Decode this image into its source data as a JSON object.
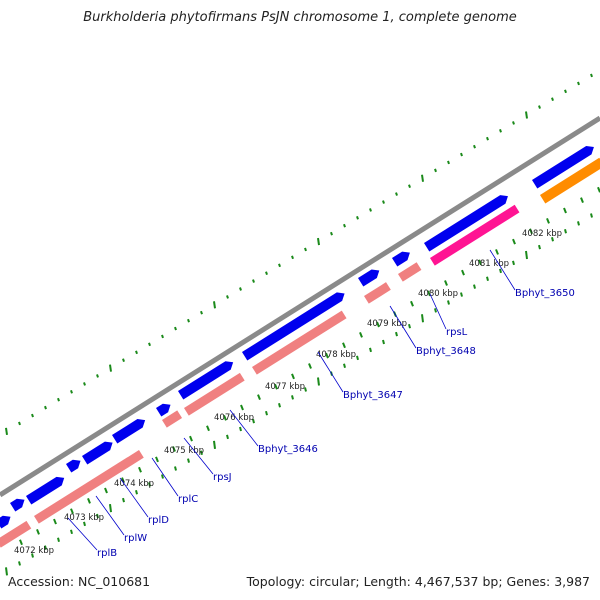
{
  "header": {
    "title": "Burkholderia phytofirmans PsJN chromosome 1, complete genome"
  },
  "footer": {
    "accession": "Accession: NC_010681",
    "summary": "Topology: circular; Length: 4,467,537 bp; Genes: 3,987"
  },
  "colors": {
    "backbone": "#8a8a8a",
    "cds_forward": "#0000ee",
    "rrna_like": "#f08080",
    "pseudo_pink": "#ff1493",
    "orange": "#ff8c00",
    "tick_green": "#1a8a1a",
    "label_line": "#0000cc"
  },
  "kbp_labels": [
    "4072 kbp",
    "4073 kbp",
    "4074 kbp",
    "4075 kbp",
    "4076 kbp",
    "4077 kbp",
    "4078 kbp",
    "4079 kbp",
    "4080 kbp",
    "4081 kbp",
    "4082 kbp"
  ],
  "gene_labels": [
    "rplB",
    "rplW",
    "rplD",
    "rplC",
    "rpsJ",
    "Bphyt_3646",
    "Bphyt_3647",
    "Bphyt_3648",
    "rpsL",
    "Bphyt_3650"
  ]
}
